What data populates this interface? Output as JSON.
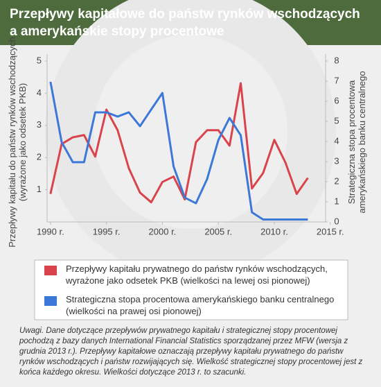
{
  "chart_data": {
    "type": "line",
    "title": "Przepływy kapitałowe do państw rynków wschodzących\na amerykańskie stopy procentowe",
    "y_label": "Przepływy kapitału do państw rynków wschodzących (wyrażone jako odsetek PKB)",
    "y2_label": "Strategiczna stopa procentowa amerykańskiego banku centralnego",
    "x": [
      1990,
      1991,
      1992,
      1993,
      1994,
      1995,
      1996,
      1997,
      1998,
      1999,
      2000,
      2001,
      2002,
      2003,
      2004,
      2005,
      2006,
      2007,
      2008,
      2009,
      2010,
      2011,
      2012,
      2013
    ],
    "xlim": [
      1989.7,
      2015.2
    ],
    "xticks": [
      {
        "value": 1990,
        "label": "1990 r."
      },
      {
        "value": 1995,
        "label": "1995 r."
      },
      {
        "value": 2000,
        "label": "2000 r."
      },
      {
        "value": 2005,
        "label": "2005 r."
      },
      {
        "value": 2010,
        "label": "2010 r."
      },
      {
        "value": 2015,
        "label": "2015 r."
      }
    ],
    "ylim": [
      0,
      5
    ],
    "yticks": [
      1,
      2,
      3,
      4,
      5
    ],
    "y2lim": [
      0,
      8
    ],
    "y2ticks": [
      0,
      1,
      2,
      3,
      4,
      5,
      6,
      7,
      8
    ],
    "series": [
      {
        "name": "Przepływy kapitału prywatnego do państw rynków wschodzących,\nwyrażone jako odsetek PKB (wielkości na lewej osi pionowej)",
        "color": "#d9434b",
        "values": [
          0.87,
          2.42,
          2.63,
          2.7,
          2.03,
          3.49,
          2.85,
          1.67,
          0.91,
          0.61,
          1.24,
          1.41,
          0.7,
          2.48,
          2.85,
          2.85,
          2.37,
          4.31,
          1.04,
          1.52,
          2.55,
          1.84,
          0.87,
          1.37
        ]
      },
      {
        "name": "Strategiczna stopa procentowa amerykańskiego banku centralnego\n(wielkości na prawej osi pionowej)",
        "color": "#3c78d8",
        "axis": "y2",
        "values": [
          6.97,
          3.97,
          2.97,
          2.97,
          5.45,
          5.45,
          5.24,
          5.45,
          4.76,
          5.59,
          6.41,
          2.76,
          1.21,
          0.93,
          2.14,
          4.07,
          5.17,
          4.31,
          0.48,
          0.12,
          0.12,
          0.12,
          0.12,
          0.12
        ]
      }
    ],
    "note": "Uwagi. Dane dotyczące przepływów prywatnego kapitału i strategicznej stopy procentowej pochodzą z bazy danych International Financial Statistics sporządzanej przez MFW (wersja z grudnia 2013 r.). Przepływy kapitałowe oznaczają przepływy kapitału prywatnego do państw rynków wschodzących i państw rozwijających się. Wielkość strategicznej stopy procentowej jest z końca każdego okresu. Wielkości dotyczące 2013 r. to szacunki."
  }
}
